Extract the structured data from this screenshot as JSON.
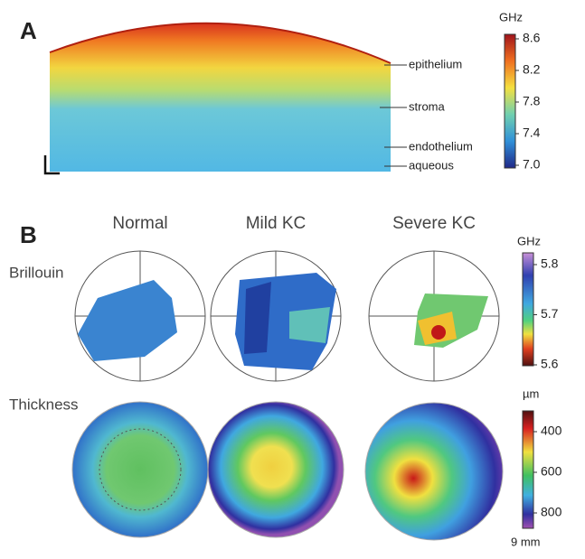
{
  "panel_a": {
    "label": "A",
    "colorbar": {
      "title": "GHz",
      "ticks": [
        "8.6",
        "8.2",
        "7.8",
        "7.4",
        "7.0"
      ]
    },
    "layers": [
      "epithelium",
      "stroma",
      "endothelium",
      "aqueous"
    ]
  },
  "panel_b": {
    "label": "B",
    "columns": [
      "Normal",
      "Mild KC",
      "Severe KC"
    ],
    "rows": [
      "Brillouin",
      "Thickness"
    ],
    "brillouin_colorbar": {
      "title": "GHz",
      "ticks": [
        "5.8",
        "5.7",
        "5.6"
      ]
    },
    "thickness_colorbar": {
      "title": "µm",
      "ticks": [
        "400",
        "600",
        "800"
      ]
    },
    "scale": "9 mm"
  }
}
